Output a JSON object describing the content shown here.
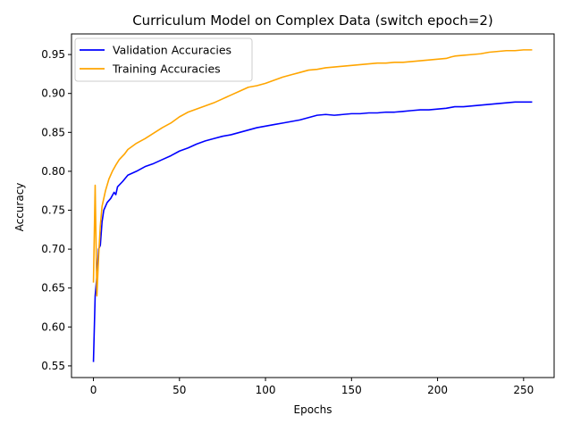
{
  "chart_data": {
    "type": "line",
    "title": "Curriculum Model on Complex Data (switch epoch=2)",
    "xlabel": "Epochs",
    "ylabel": "Accuracy",
    "xlim": [
      -12.75,
      267.75
    ],
    "ylim": [
      0.535,
      0.9765
    ],
    "xticks": [
      0,
      50,
      100,
      150,
      200,
      250
    ],
    "yticks": [
      0.55,
      0.6,
      0.65,
      0.7,
      0.75,
      0.8,
      0.85,
      0.9,
      0.95
    ],
    "ytick_labels": [
      "0.55",
      "0.60",
      "0.65",
      "0.70",
      "0.75",
      "0.80",
      "0.85",
      "0.90",
      "0.95"
    ],
    "grid": false,
    "legend_position": "upper-left",
    "series": [
      {
        "name": "Validation Accuracies",
        "color": "#0000ff",
        "points": [
          [
            0,
            0.555
          ],
          [
            1,
            0.64
          ],
          [
            2,
            0.665
          ],
          [
            3,
            0.7
          ],
          [
            4,
            0.705
          ],
          [
            5,
            0.735
          ],
          [
            6,
            0.75
          ],
          [
            8,
            0.76
          ],
          [
            10,
            0.765
          ],
          [
            12,
            0.773
          ],
          [
            13,
            0.77
          ],
          [
            14,
            0.78
          ],
          [
            17,
            0.787
          ],
          [
            20,
            0.795
          ],
          [
            25,
            0.8
          ],
          [
            30,
            0.806
          ],
          [
            35,
            0.81
          ],
          [
            40,
            0.815
          ],
          [
            45,
            0.82
          ],
          [
            50,
            0.826
          ],
          [
            55,
            0.83
          ],
          [
            60,
            0.835
          ],
          [
            65,
            0.839
          ],
          [
            70,
            0.842
          ],
          [
            75,
            0.845
          ],
          [
            80,
            0.847
          ],
          [
            85,
            0.85
          ],
          [
            90,
            0.853
          ],
          [
            95,
            0.856
          ],
          [
            100,
            0.858
          ],
          [
            105,
            0.86
          ],
          [
            110,
            0.862
          ],
          [
            115,
            0.864
          ],
          [
            120,
            0.866
          ],
          [
            125,
            0.869
          ],
          [
            130,
            0.872
          ],
          [
            135,
            0.873
          ],
          [
            140,
            0.872
          ],
          [
            145,
            0.873
          ],
          [
            150,
            0.874
          ],
          [
            155,
            0.874
          ],
          [
            160,
            0.875
          ],
          [
            165,
            0.875
          ],
          [
            170,
            0.876
          ],
          [
            175,
            0.876
          ],
          [
            180,
            0.877
          ],
          [
            185,
            0.878
          ],
          [
            190,
            0.879
          ],
          [
            195,
            0.879
          ],
          [
            200,
            0.88
          ],
          [
            205,
            0.881
          ],
          [
            210,
            0.883
          ],
          [
            215,
            0.883
          ],
          [
            220,
            0.884
          ],
          [
            225,
            0.885
          ],
          [
            230,
            0.886
          ],
          [
            235,
            0.887
          ],
          [
            240,
            0.888
          ],
          [
            245,
            0.889
          ],
          [
            250,
            0.889
          ],
          [
            255,
            0.889
          ]
        ]
      },
      {
        "name": "Training Accuracies",
        "color": "#ffa500",
        "points": [
          [
            0,
            0.657
          ],
          [
            1,
            0.782
          ],
          [
            2,
            0.64
          ],
          [
            3,
            0.69
          ],
          [
            4,
            0.73
          ],
          [
            5,
            0.755
          ],
          [
            7,
            0.775
          ],
          [
            9,
            0.79
          ],
          [
            11,
            0.8
          ],
          [
            13,
            0.808
          ],
          [
            15,
            0.815
          ],
          [
            18,
            0.822
          ],
          [
            20,
            0.828
          ],
          [
            25,
            0.836
          ],
          [
            30,
            0.842
          ],
          [
            35,
            0.849
          ],
          [
            40,
            0.856
          ],
          [
            45,
            0.862
          ],
          [
            50,
            0.87
          ],
          [
            55,
            0.876
          ],
          [
            60,
            0.88
          ],
          [
            65,
            0.884
          ],
          [
            70,
            0.888
          ],
          [
            75,
            0.893
          ],
          [
            80,
            0.898
          ],
          [
            85,
            0.903
          ],
          [
            90,
            0.908
          ],
          [
            95,
            0.91
          ],
          [
            100,
            0.913
          ],
          [
            105,
            0.917
          ],
          [
            110,
            0.921
          ],
          [
            115,
            0.924
          ],
          [
            120,
            0.927
          ],
          [
            125,
            0.93
          ],
          [
            130,
            0.931
          ],
          [
            135,
            0.933
          ],
          [
            140,
            0.934
          ],
          [
            145,
            0.935
          ],
          [
            150,
            0.936
          ],
          [
            155,
            0.937
          ],
          [
            160,
            0.938
          ],
          [
            165,
            0.939
          ],
          [
            170,
            0.939
          ],
          [
            175,
            0.94
          ],
          [
            180,
            0.94
          ],
          [
            185,
            0.941
          ],
          [
            190,
            0.942
          ],
          [
            195,
            0.943
          ],
          [
            200,
            0.944
          ],
          [
            205,
            0.945
          ],
          [
            208,
            0.947
          ],
          [
            210,
            0.948
          ],
          [
            215,
            0.949
          ],
          [
            220,
            0.95
          ],
          [
            225,
            0.951
          ],
          [
            230,
            0.953
          ],
          [
            235,
            0.954
          ],
          [
            240,
            0.955
          ],
          [
            245,
            0.955
          ],
          [
            250,
            0.956
          ],
          [
            255,
            0.956
          ]
        ]
      }
    ]
  }
}
